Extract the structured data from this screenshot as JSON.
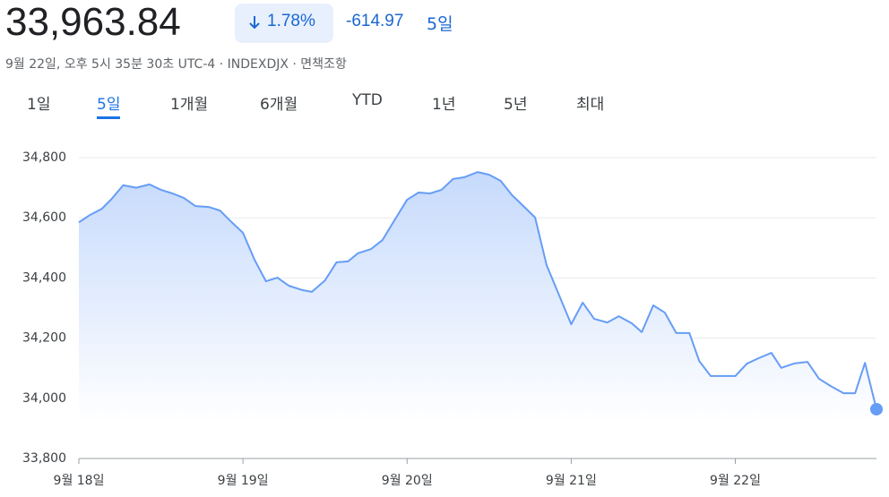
{
  "header": {
    "price": "33,963.84",
    "change_percent": "1.78%",
    "change": "-614.97",
    "period": "5일",
    "subtitle": "9월 22일, 오후 5시 35분 30초 UTC-4 · INDEXDJX · 면책조항"
  },
  "tabs": {
    "items": [
      "1일",
      "5일",
      "1개월",
      "6개월",
      "YTD",
      "1년",
      "5년",
      "최대"
    ],
    "selected": 1
  },
  "chart_data": {
    "type": "line",
    "color": "#669df6",
    "grid": true,
    "xlim": [
      0,
      4.86
    ],
    "ylim": [
      33800,
      34800
    ],
    "xticks": [
      {
        "value": 0,
        "label": "9월 18일"
      },
      {
        "value": 1,
        "label": "9월 19일"
      },
      {
        "value": 2,
        "label": "9월 20일"
      },
      {
        "value": 3,
        "label": "9월 21일"
      },
      {
        "value": 4,
        "label": "9월 22일"
      }
    ],
    "yticks": [
      {
        "value": 33800,
        "label": "33,800"
      },
      {
        "value": 34000,
        "label": "34,000"
      },
      {
        "value": 34200,
        "label": "34,200"
      },
      {
        "value": 34400,
        "label": "34,400"
      },
      {
        "value": 34600,
        "label": "34,600"
      },
      {
        "value": 34800,
        "label": "34,800"
      }
    ],
    "x": [
      0,
      0.07,
      0.14,
      0.2,
      0.27,
      0.35,
      0.43,
      0.5,
      0.57,
      0.64,
      0.71,
      0.79,
      0.86,
      0.93,
      1.0,
      1.07,
      1.14,
      1.21,
      1.28,
      1.36,
      1.42,
      1.5,
      1.57,
      1.64,
      1.7,
      1.78,
      1.85,
      1.92,
      2.0,
      2.07,
      2.14,
      2.21,
      2.28,
      2.35,
      2.43,
      2.5,
      2.57,
      2.64,
      2.72,
      2.78,
      2.85,
      3.0,
      3.07,
      3.14,
      3.22,
      3.29,
      3.37,
      3.43,
      3.5,
      3.57,
      3.64,
      3.72,
      3.78,
      3.85,
      3.92,
      4.0,
      4.07,
      4.14,
      4.22,
      4.28,
      4.36,
      4.44,
      4.51,
      4.58,
      4.66,
      4.73,
      4.79,
      4.86
    ],
    "values": [
      34585,
      34610,
      34630,
      34663,
      34708,
      34700,
      34711,
      34693,
      34681,
      34666,
      34639,
      34636,
      34624,
      34586,
      34550,
      34461,
      34389,
      34401,
      34374,
      34360,
      34354,
      34392,
      34452,
      34455,
      34482,
      34496,
      34526,
      34589,
      34660,
      34684,
      34681,
      34693,
      34729,
      34735,
      34752,
      34743,
      34723,
      34675,
      34633,
      34601,
      34443,
      34246,
      34318,
      34264,
      34252,
      34273,
      34249,
      34220,
      34309,
      34285,
      34217,
      34217,
      34124,
      34074,
      34074,
      34074,
      34115,
      34133,
      34151,
      34101,
      34116,
      34121,
      34065,
      34041,
      34017,
      34017,
      34118,
      33963.84
    ]
  }
}
